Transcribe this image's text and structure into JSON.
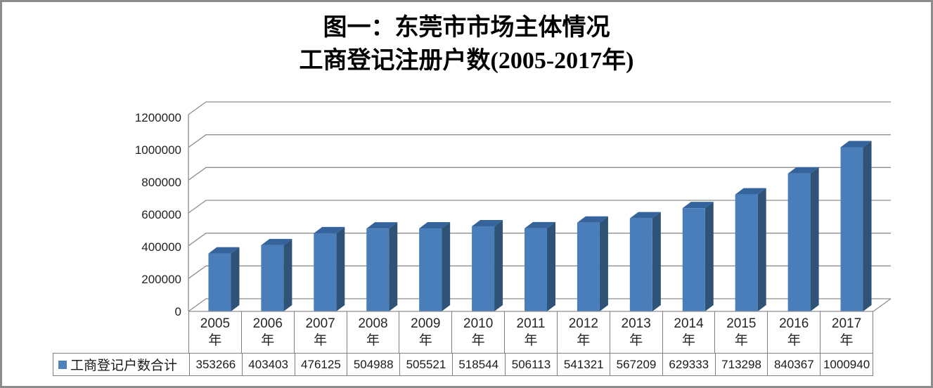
{
  "title": {
    "line1": "图一：东莞市市场主体情况",
    "line2": "工商登记注册户数(2005-2017年)"
  },
  "chart_data": {
    "type": "bar",
    "style": "3d-column",
    "title": "图一：东莞市市场主体情况",
    "subtitle": "工商登记注册户数(2005-2017年)",
    "categories": [
      "2005年",
      "2006年",
      "2007年",
      "2008年",
      "2009年",
      "2010年",
      "2011年",
      "2012年",
      "2013年",
      "2014年",
      "2015年",
      "2016年",
      "2017年"
    ],
    "series": [
      {
        "name": "工商登记户数合计",
        "values": [
          353266,
          403403,
          476125,
          504988,
          505521,
          518544,
          506113,
          541321,
          567209,
          629333,
          713298,
          840367,
          1000940
        ]
      }
    ],
    "ylim": [
      0,
      1200000
    ],
    "ytick_interval": 200000,
    "ytick_labels": [
      "0",
      "200000",
      "400000",
      "600000",
      "800000",
      "1000000",
      "1200000"
    ],
    "grid": true,
    "legend_position": "bottom-table-left",
    "data_table_shown": true,
    "colors": {
      "bar_front": "#4A7EBB",
      "bar_top": "#35639B",
      "bar_side": "#2E5377",
      "legend_swatch": "#4F81BD",
      "gridline": "#8F8F8F",
      "table_border": "#808080",
      "frame_border": "#8C8C8C"
    }
  }
}
